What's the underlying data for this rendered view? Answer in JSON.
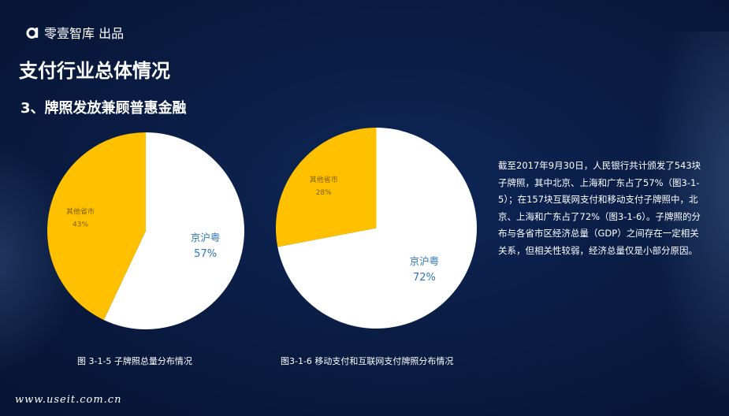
{
  "brand": {
    "text": "零壹智库 出品",
    "logo_icon": "letter-a-logo-icon"
  },
  "title": "支付行业总体情况",
  "subtitle": "3、牌照发放兼顾普惠金融",
  "note": "截至2017年9月30日，人民银行共计颁发了543块子牌照，其中北京、上海和广东占了57%（图3-1-5）；在157块互联网支付和移动支付子牌照中，北京、上海和广东占了72%（图3-1-6）。子牌照的分布与各省市区经济总量（GDP）之间存在一定相关关系，但相关性较弱，经济总量仅是小部分原因。",
  "footer": {
    "url": "www.useit.com.cn"
  },
  "colors": {
    "background": "#0a1d45",
    "slice_primary": "#ffffff",
    "slice_secondary": "#ffc000",
    "label_primary": "#2e75b6",
    "label_secondary": "#7f6000"
  },
  "chart_data": [
    {
      "type": "pie",
      "title": "",
      "caption": "图 3-1-5 子牌照总量分布情况",
      "slices": [
        {
          "label": "京沪粤",
          "value": 57,
          "value_text": "57%",
          "color": "#ffffff",
          "label_color": "#2e75b6"
        },
        {
          "label": "其他省市",
          "value": 43,
          "value_text": "43%",
          "color": "#ffc000",
          "label_color": "#7f6000"
        }
      ]
    },
    {
      "type": "pie",
      "title": "",
      "caption": "图3-1-6 移动支付和互联网支付牌照分布情况",
      "slices": [
        {
          "label": "京沪粤",
          "value": 72,
          "value_text": "72%",
          "color": "#ffffff",
          "label_color": "#2e75b6"
        },
        {
          "label": "其他省市",
          "value": 28,
          "value_text": "28%",
          "color": "#ffc000",
          "label_color": "#7f6000"
        }
      ]
    }
  ]
}
